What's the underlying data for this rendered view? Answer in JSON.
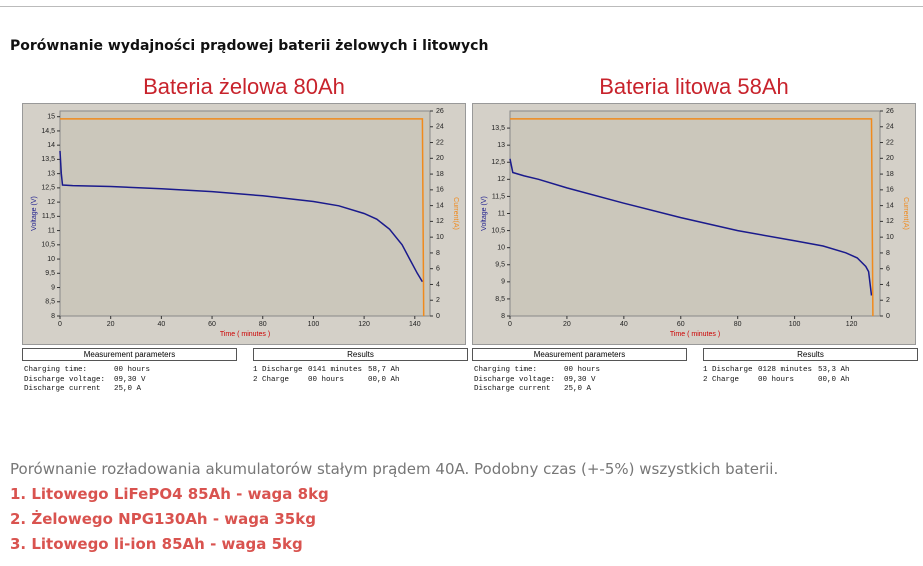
{
  "header": {
    "title": "Porównanie wydajności prądowej baterii żelowych i litowych"
  },
  "charts": [
    {
      "type": "line",
      "title": "Bateria żelowa 80Ah",
      "xlabel": "Time ( minutes )",
      "ylabel": "Voltage (V)",
      "y2label": "Current(A)",
      "xlim": [
        0,
        146
      ],
      "xticks": [
        0,
        20,
        40,
        60,
        80,
        100,
        120,
        140
      ],
      "ylim": [
        8,
        15.2
      ],
      "yticks": [
        8,
        {
          "value": 8.5,
          "label": "8,5"
        },
        9,
        {
          "value": 9.5,
          "label": "9,5"
        },
        10,
        {
          "value": 10.5,
          "label": "10,5"
        },
        11,
        {
          "value": 11.5,
          "label": "11,5"
        },
        12,
        {
          "value": 12.5,
          "label": "12,5"
        },
        13,
        {
          "value": 13.5,
          "label": "13,5"
        },
        14,
        {
          "value": 14.5,
          "label": "14,5"
        },
        15
      ],
      "y2lim": [
        0,
        26
      ],
      "y2ticks": [
        0,
        2,
        4,
        6,
        8,
        10,
        12,
        14,
        16,
        18,
        20,
        22,
        24,
        26
      ],
      "series": [
        {
          "color": "#1a1a8c",
          "x": [
            0,
            0.5,
            1,
            5,
            20,
            40,
            60,
            80,
            100,
            110,
            120,
            125,
            130,
            135,
            138,
            141,
            143
          ],
          "values": [
            13.8,
            13.0,
            12.6,
            12.58,
            12.55,
            12.47,
            12.37,
            12.22,
            12.02,
            11.87,
            11.6,
            11.4,
            11.05,
            10.5,
            10.0,
            9.5,
            9.2
          ]
        },
        {
          "color": "#f08a1c",
          "axis": "y2",
          "x": [
            0,
            143,
            143.5
          ],
          "values": [
            25,
            25,
            0
          ]
        }
      ],
      "params": {
        "title": "Measurement parameters",
        "rows": [
          [
            "Charging time:",
            "00 hours"
          ],
          [
            "Discharge voltage:",
            "09,30 V"
          ],
          [
            "Discharge current",
            "25,0 A"
          ]
        ]
      },
      "results": {
        "title": "Results",
        "rows": [
          [
            "1 Discharge",
            "0141 minutes",
            "58,7 Ah"
          ],
          [
            "2 Charge",
            "00 hours",
            "00,0 Ah"
          ]
        ]
      }
    },
    {
      "type": "line",
      "title": "Bateria litowa 58Ah",
      "xlabel": "Time ( minutes )",
      "ylabel": "Voltage (V)",
      "y2label": "Current(A)",
      "xlim": [
        0,
        130
      ],
      "xticks": [
        0,
        20,
        40,
        60,
        80,
        100,
        120
      ],
      "ylim": [
        8,
        14
      ],
      "yticks": [
        8,
        {
          "value": 8.5,
          "label": "8,5"
        },
        9,
        {
          "value": 9.5,
          "label": "9,5"
        },
        10,
        {
          "value": 10.5,
          "label": "10,5"
        },
        11,
        {
          "value": 11.5,
          "label": "11,5"
        },
        12,
        {
          "value": 12.5,
          "label": "12,5"
        },
        13,
        {
          "value": 13.5,
          "label": "13,5"
        }
      ],
      "y2lim": [
        0,
        26
      ],
      "y2ticks": [
        0,
        2,
        4,
        6,
        8,
        10,
        12,
        14,
        16,
        18,
        20,
        22,
        24,
        26
      ],
      "series": [
        {
          "color": "#1a1a8c",
          "x": [
            0,
            0.5,
            1,
            5,
            10,
            20,
            40,
            60,
            80,
            100,
            110,
            118,
            122,
            125,
            126,
            127
          ],
          "values": [
            12.6,
            12.4,
            12.2,
            12.1,
            12.0,
            11.75,
            11.3,
            10.88,
            10.5,
            10.2,
            10.05,
            9.85,
            9.7,
            9.45,
            9.3,
            8.6
          ]
        },
        {
          "color": "#f08a1c",
          "axis": "y2",
          "x": [
            0,
            127,
            127.5
          ],
          "values": [
            25,
            25,
            0
          ]
        }
      ],
      "params": {
        "title": "Measurement parameters",
        "rows": [
          [
            "Charging time:",
            "00 hours"
          ],
          [
            "Discharge voltage:",
            "09,30 V"
          ],
          [
            "Discharge current",
            "25,0 A"
          ]
        ]
      },
      "results": {
        "title": "Results",
        "rows": [
          [
            "1 Discharge",
            "0128 minutes",
            "53,3 Ah"
          ],
          [
            "2 Charge",
            "00 hours",
            "00,0 Ah"
          ]
        ]
      }
    }
  ],
  "footer": {
    "text": "Porównanie rozładowania akumulatorów stałym prądem 40A. Podobny czas (+-5%) wszystkich baterii.",
    "items": [
      "1. Litowego LiFePO4 85Ah - waga 8kg",
      "2. Żelowego NPG130Ah - waga 35kg",
      "3. Litowego li-ion 85Ah - waga 5kg"
    ]
  }
}
